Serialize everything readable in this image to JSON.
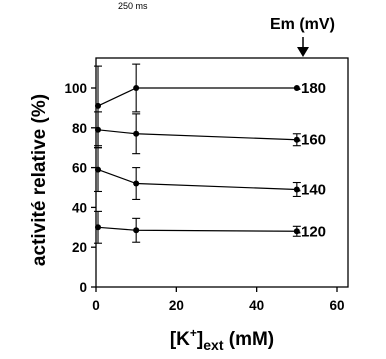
{
  "top_note": "250 ms",
  "chart_data": {
    "type": "line",
    "xlabel": "[K⁺]ext (mM)",
    "ylabel": "activité relative (%)",
    "xlim": [
      -3,
      68
    ],
    "ylim": [
      0,
      112
    ],
    "xticks": [
      0,
      20,
      40,
      60
    ],
    "yticks": [
      0,
      20,
      40,
      60,
      80,
      100
    ],
    "grid": false,
    "legend_title": "Em (mV)",
    "series": [
      {
        "name": "-180",
        "x": [
          0.5,
          10,
          50
        ],
        "y": [
          91,
          100,
          100
        ],
        "yerr": [
          20,
          12,
          0
        ]
      },
      {
        "name": "-160",
        "x": [
          0.5,
          10,
          50
        ],
        "y": [
          79,
          77,
          74
        ],
        "yerr": [
          9,
          10,
          3
        ]
      },
      {
        "name": "-140",
        "x": [
          0.5,
          10,
          50
        ],
        "y": [
          59,
          52,
          49
        ],
        "yerr": [
          11,
          8,
          3.5
        ]
      },
      {
        "name": "-120",
        "x": [
          0.5,
          10,
          50
        ],
        "y": [
          30,
          28.5,
          28
        ],
        "yerr": [
          8,
          6,
          2.5
        ]
      }
    ]
  }
}
